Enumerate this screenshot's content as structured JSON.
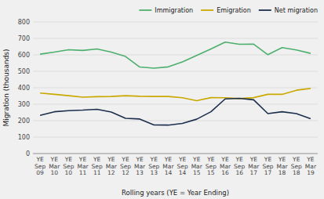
{
  "chart_data": {
    "type": "line",
    "y_label": "Migration (thousands)",
    "x_label": "Rolling years (YE = Year Ending)",
    "categories": [
      "YE\nSep\n09",
      "YE\nMar\n10",
      "YE\nSep\n10",
      "YE\nMar\n11",
      "YE\nSep\n11",
      "YE\nMar\n12",
      "YE\nSep\n12",
      "YE\nMar\n13",
      "YE\nSep\n13",
      "YE\nMar\n14",
      "YE\nSep\n14",
      "YE\nMar\n15",
      "YE\nSep\n15",
      "YE\nMar\n16",
      "YE\nSep\n16",
      "YE\nMar\n17",
      "YE\nSep\n17",
      "YE\nMar\n18",
      "YE\nSep\n18",
      "YE\nMar\n19"
    ],
    "series": [
      {
        "name": "Immigration",
        "color": "#4daf6e",
        "values": [
          604,
          617,
          631,
          627,
          636,
          617,
          590,
          526,
          519,
          527,
          557,
          596,
          636,
          677,
          664,
          665,
          601,
          644,
          630,
          609
        ]
      },
      {
        "name": "Emigration",
        "color": "#c9a800",
        "values": [
          368,
          360,
          352,
          343,
          346,
          347,
          352,
          348,
          347,
          347,
          339,
          321,
          340,
          339,
          334,
          340,
          360,
          360,
          385,
          396
        ]
      },
      {
        "name": "Net migration",
        "color": "#1c2f4d",
        "values": [
          232,
          254,
          261,
          264,
          269,
          252,
          214,
          210,
          174,
          173,
          183,
          209,
          254,
          332,
          336,
          327,
          243,
          254,
          243,
          212
        ]
      }
    ],
    "ylim": [
      0,
      800
    ],
    "yticks": [
      0,
      100,
      200,
      300,
      400,
      500,
      600,
      700,
      800
    ],
    "grid": true,
    "legend": "upper right"
  }
}
